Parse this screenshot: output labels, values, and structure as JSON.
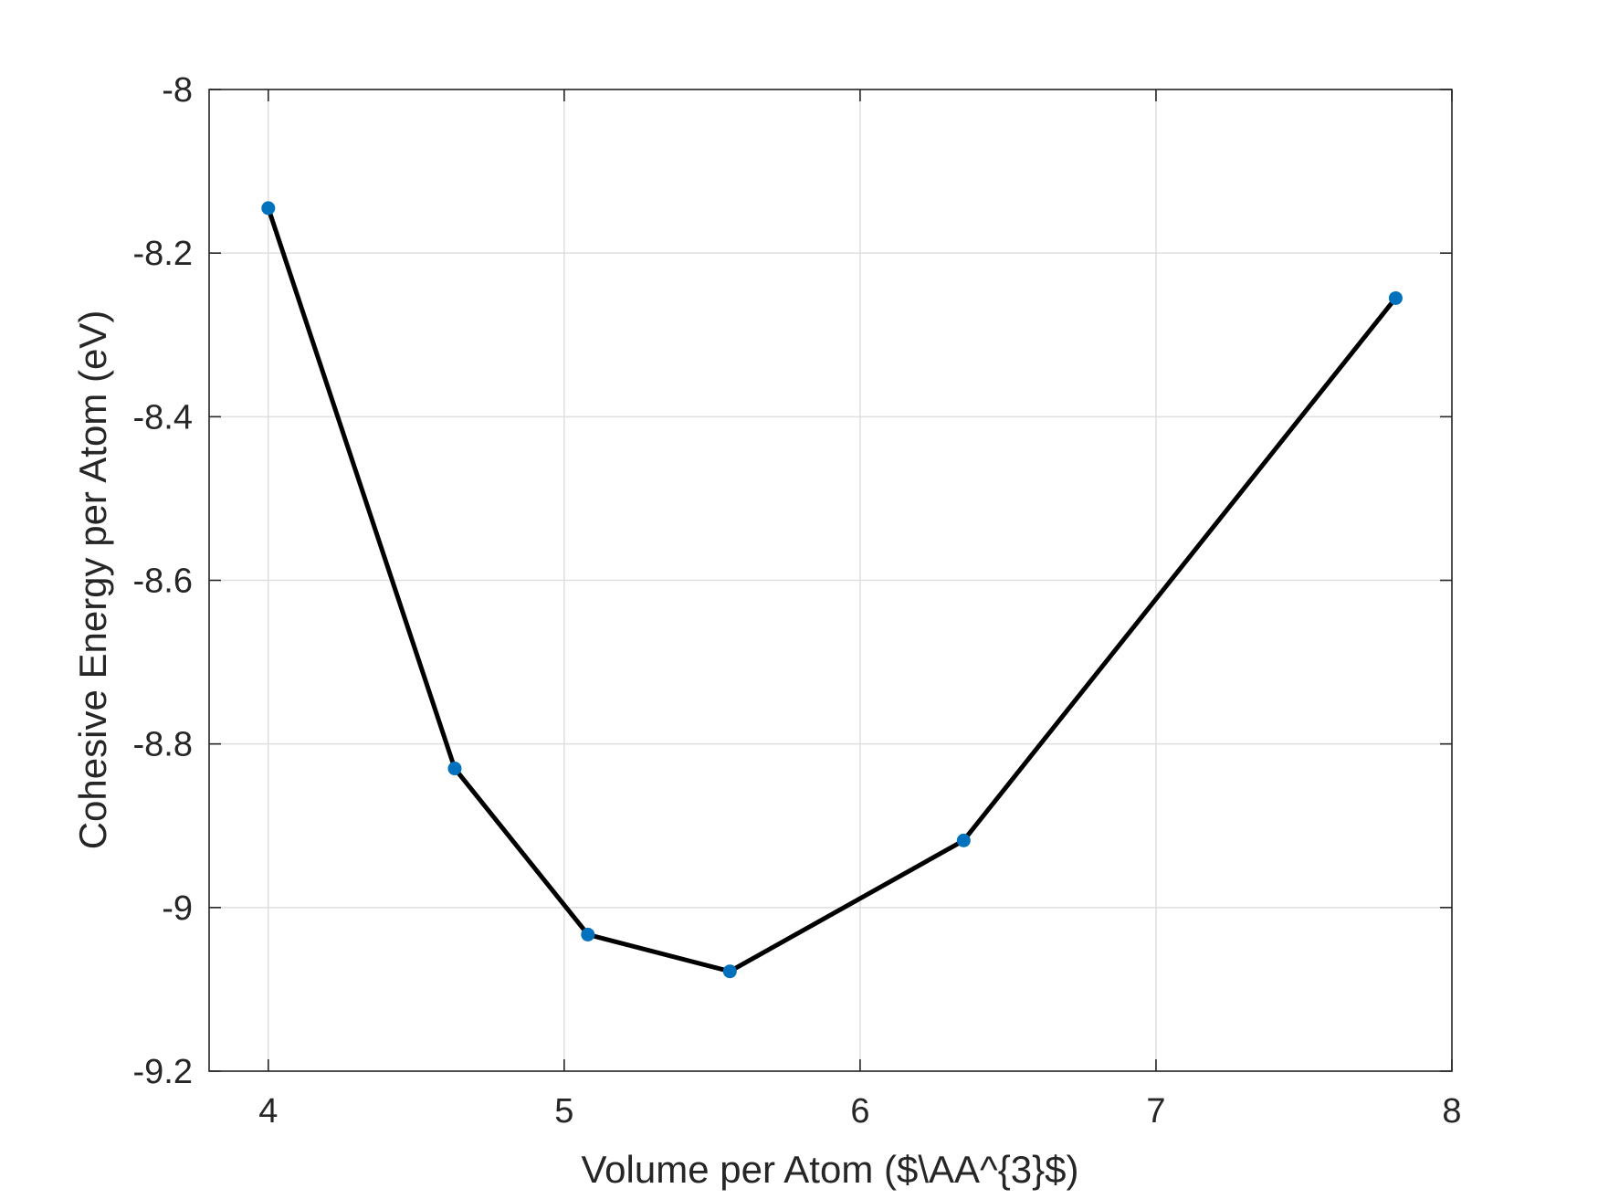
{
  "chart_data": {
    "type": "line",
    "xlabel": "Volume per Atom ($\\AA^{3}$)",
    "ylabel": "Cohesive Energy per Atom (eV)",
    "xlim": [
      3.8,
      8
    ],
    "ylim": [
      -9.2,
      -8
    ],
    "xticks": [
      4,
      5,
      6,
      7,
      8
    ],
    "xtick_labels": [
      "4",
      "5",
      "6",
      "7",
      "8"
    ],
    "yticks": [
      -8,
      -8.2,
      -8.4,
      -8.6,
      -8.8,
      -9,
      -9.2
    ],
    "ytick_labels": [
      "-8",
      "-8.2",
      "-8.4",
      "-8.6",
      "-8.8",
      "-9",
      "-9.2"
    ],
    "grid": true,
    "line_color": "#000000",
    "marker_color": "#0072BD",
    "series": [
      {
        "x": [
          4.0,
          4.63,
          5.08,
          5.56,
          6.35,
          7.81
        ],
        "y": [
          -8.145,
          -8.83,
          -9.033,
          -9.078,
          -8.918,
          -8.255
        ]
      }
    ]
  }
}
